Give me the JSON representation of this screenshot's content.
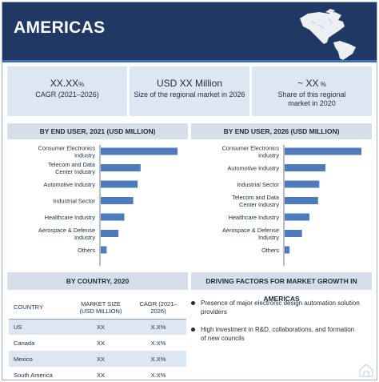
{
  "header": {
    "title": "AMERICAS"
  },
  "stats": [
    {
      "value": "XX.XX",
      "unit": "%",
      "label": "CAGR (2021–2026)"
    },
    {
      "value": "USD XX Million",
      "unit": "",
      "label": "Size of the regional market in 2026"
    },
    {
      "value": "~ XX",
      "unit": " %",
      "label": "Share of this regional market in 2020"
    }
  ],
  "end_user_2021": {
    "title": "BY END USER, 2021 (USD MILLION)",
    "chart_data": {
      "type": "bar",
      "categories": [
        "Consumer Electronics Industry",
        "Telecom and Data Center Industry",
        "Automotive Industry",
        "Industrial Sector",
        "Healthcare Industry",
        "Aerospace & Defense Industry",
        "Others"
      ],
      "values": [
        52,
        27,
        25,
        22,
        16,
        12,
        4
      ]
    }
  },
  "end_user_2026": {
    "title": "BY END USER, 2026 (USD MILLION)",
    "chart_data": {
      "type": "bar",
      "categories": [
        "Consumer Electronics Industry",
        "Automotive Industry",
        "Industrial Sector",
        "Telecom and Data Center Industry",
        "Healthcare Industry",
        "Aerospace & Defense Industry",
        "Others"
      ],
      "values": [
        62,
        33,
        28,
        27,
        20,
        14,
        4
      ]
    }
  },
  "by_country": {
    "title": "BY COUNTRY, 2020",
    "columns": [
      "COUNTRY",
      "MARKET SIZE (USD MILLION)",
      "CAGR (2021–2026)"
    ],
    "rows": [
      [
        "US",
        "XX",
        "X.X%"
      ],
      [
        "Canada",
        "XX",
        "X.X%"
      ],
      [
        "Mexico",
        "XX",
        "X.X%"
      ],
      [
        "South America",
        "XX",
        "X.X%"
      ]
    ]
  },
  "drivers": {
    "title": "DRIVING FACTORS FOR MARKET GROWTH IN AMERICAS",
    "items": [
      "Presence of major electronic design automation solution providers",
      "High investment in R&D, collaborations, and formation of new councils"
    ]
  },
  "colors": {
    "header": "#1f3864",
    "accent": "#3b6fb6",
    "bar": "#4f7bbd",
    "box": "#dde7f3"
  }
}
